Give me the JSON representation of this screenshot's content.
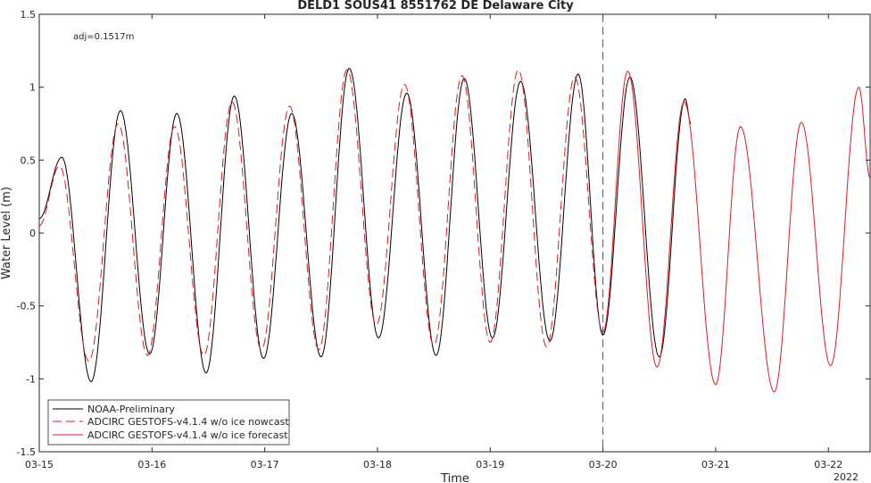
{
  "chart_data": {
    "type": "line",
    "title": "DELD1 SOUS41 8551762 DE Delaware City",
    "annotation": "adj=0.1517m",
    "xlabel": "Time",
    "ylabel": "Water Level (m)",
    "year_label": "2022",
    "xlim": [
      0,
      7.37
    ],
    "ylim": [
      -1.5,
      1.5
    ],
    "x_ticks": [
      {
        "value": 0,
        "label": "03-15"
      },
      {
        "value": 1,
        "label": "03-16"
      },
      {
        "value": 2,
        "label": "03-17"
      },
      {
        "value": 3,
        "label": "03-18"
      },
      {
        "value": 4,
        "label": "03-19"
      },
      {
        "value": 5,
        "label": "03-20"
      },
      {
        "value": 6,
        "label": "03-21"
      },
      {
        "value": 7,
        "label": "03-22"
      }
    ],
    "y_ticks": [
      {
        "value": 1.5,
        "label": "1.5"
      },
      {
        "value": 1,
        "label": "1"
      },
      {
        "value": 0.5,
        "label": "0.5"
      },
      {
        "value": 0,
        "label": "0"
      },
      {
        "value": -0.5,
        "label": "-0.5"
      },
      {
        "value": -1,
        "label": "-1"
      },
      {
        "value": -1.5,
        "label": "-1.5"
      }
    ],
    "nowcast_boundary_x": 5.0,
    "legend_position": "bottom-left",
    "series": [
      {
        "name": "NOAA-Preliminary",
        "color": "#000000",
        "dash": "solid",
        "points": [
          [
            0,
            0.1
          ],
          [
            0.2,
            0.52
          ],
          [
            0.46,
            -1.02
          ],
          [
            0.72,
            0.84
          ],
          [
            0.98,
            -0.83
          ],
          [
            1.22,
            0.82
          ],
          [
            1.48,
            -0.96
          ],
          [
            1.73,
            0.94
          ],
          [
            1.99,
            -0.86
          ],
          [
            2.24,
            0.82
          ],
          [
            2.5,
            -0.85
          ],
          [
            2.75,
            1.13
          ],
          [
            3.01,
            -0.72
          ],
          [
            3.26,
            0.96
          ],
          [
            3.52,
            -0.84
          ],
          [
            3.77,
            1.06
          ],
          [
            4.02,
            -0.72
          ],
          [
            4.27,
            1.04
          ],
          [
            4.53,
            -0.74
          ],
          [
            4.78,
            1.09
          ],
          [
            5.0,
            -0.7
          ],
          [
            5.24,
            1.07
          ],
          [
            5.5,
            -0.85
          ],
          [
            5.73,
            0.92
          ],
          [
            5.78,
            0.75
          ]
        ]
      },
      {
        "name": "ADCIRC GESTOFS-v4.1.4 w/o ice nowcast",
        "color": "#e41a1c",
        "dash": "dashed",
        "points": [
          [
            0,
            0.05
          ],
          [
            0.18,
            0.46
          ],
          [
            0.44,
            -0.88
          ],
          [
            0.7,
            0.75
          ],
          [
            0.96,
            -0.84
          ],
          [
            1.2,
            0.73
          ],
          [
            1.46,
            -0.84
          ],
          [
            1.71,
            0.9
          ],
          [
            1.97,
            -0.8
          ],
          [
            2.22,
            0.87
          ],
          [
            2.48,
            -0.8
          ],
          [
            2.73,
            1.12
          ],
          [
            2.99,
            -0.63
          ],
          [
            3.24,
            1.02
          ],
          [
            3.5,
            -0.77
          ],
          [
            3.75,
            1.08
          ],
          [
            4.0,
            -0.75
          ],
          [
            4.25,
            1.12
          ],
          [
            4.5,
            -0.78
          ],
          [
            4.75,
            1.07
          ],
          [
            5.0,
            -0.68
          ]
        ]
      },
      {
        "name": "ADCIRC GESTOFS-v4.1.4 w/o ice forecast",
        "color": "#e41a1c",
        "dash": "solid",
        "points": [
          [
            5.0,
            -0.68
          ],
          [
            5.22,
            1.11
          ],
          [
            5.48,
            -0.92
          ],
          [
            5.72,
            0.9
          ],
          [
            6.0,
            -1.04
          ],
          [
            6.22,
            0.73
          ],
          [
            6.52,
            -1.09
          ],
          [
            6.76,
            0.76
          ],
          [
            7.02,
            -0.91
          ],
          [
            7.27,
            1.0
          ],
          [
            7.37,
            0.38
          ]
        ]
      }
    ]
  }
}
